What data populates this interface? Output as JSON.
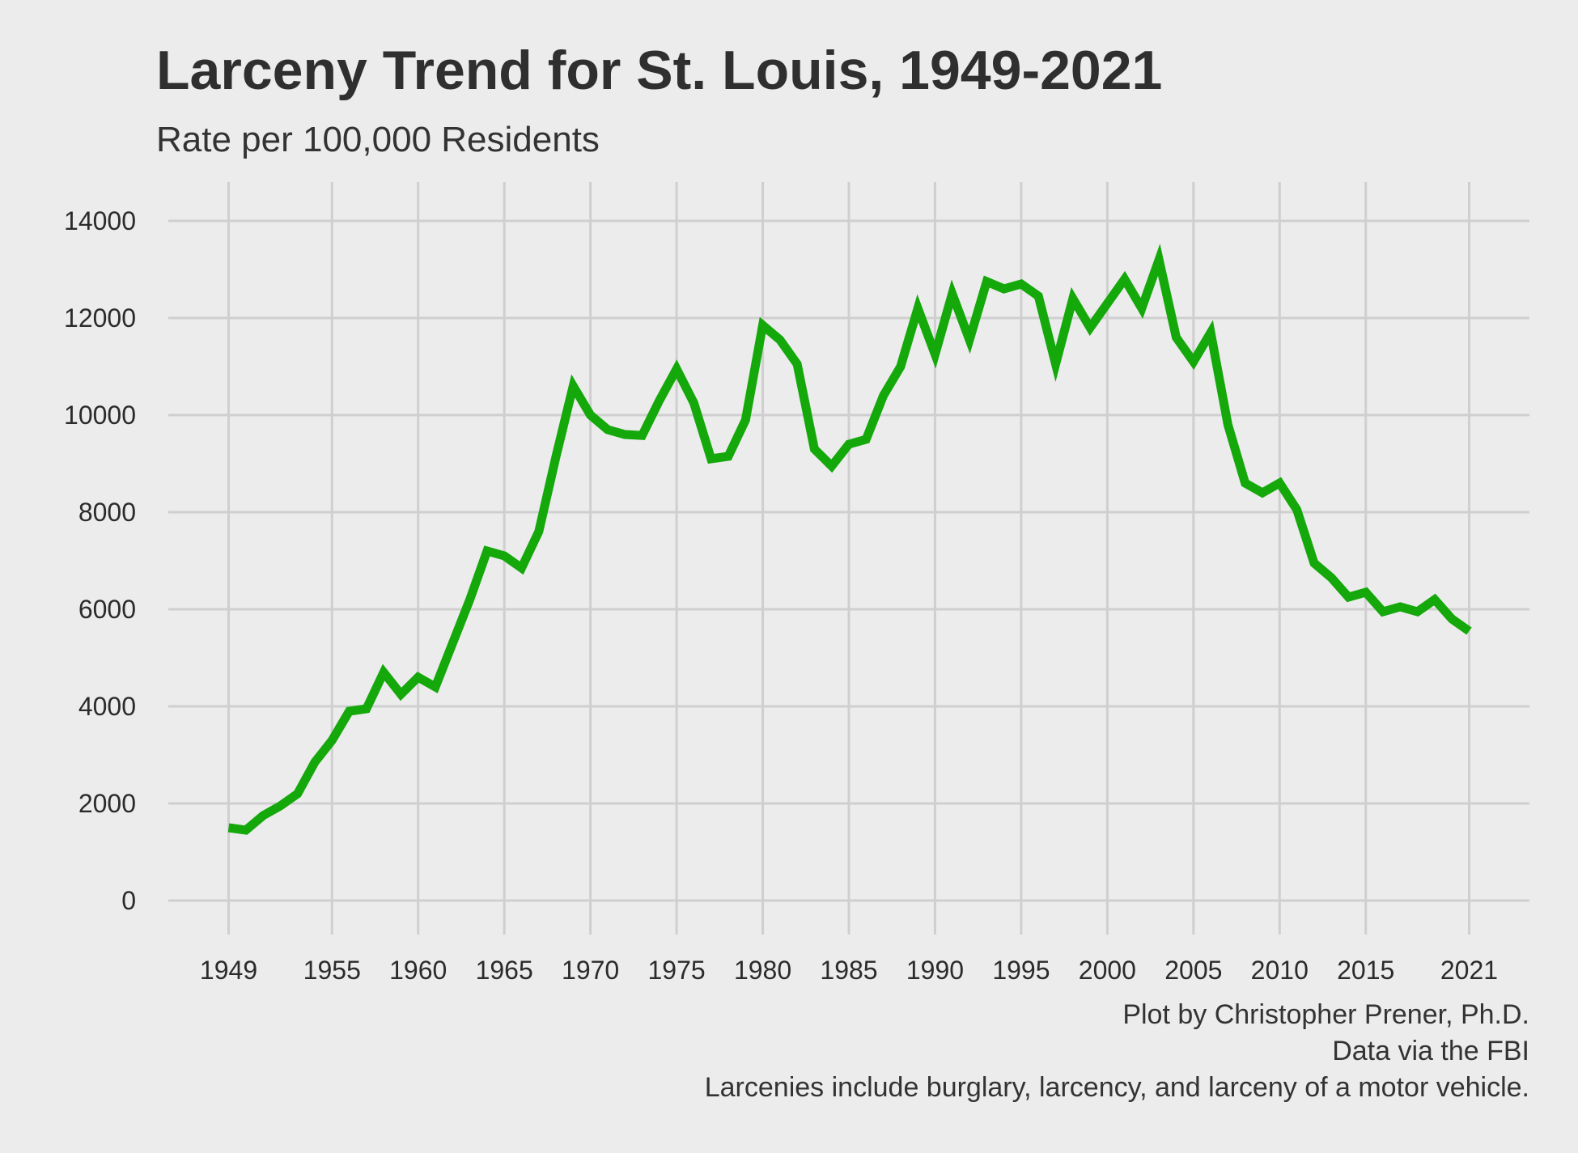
{
  "title": "Larceny Trend for St. Louis, 1949-2021",
  "subtitle": "Rate per 100,000 Residents",
  "caption": {
    "line1": "Plot by Christopher Prener, Ph.D.",
    "line2": "Data via the FBI",
    "line3": "Larcenies include burglary, larcency, and larceny of a motor vehicle."
  },
  "colors": {
    "background": "#ececec",
    "grid": "#cfcfcf",
    "line": "#14a80a",
    "text": "#2b2b2b"
  },
  "chart_data": {
    "type": "line",
    "title": "Larceny Trend for St. Louis, 1949-2021",
    "subtitle": "Rate per 100,000 Residents",
    "xlabel": "",
    "ylabel": "",
    "xlim": [
      1945.5,
      2024.5
    ],
    "ylim": [
      -700,
      14800
    ],
    "x_ticks": [
      1949,
      1955,
      1960,
      1965,
      1970,
      1975,
      1980,
      1985,
      1990,
      1995,
      2000,
      2005,
      2010,
      2015,
      2021
    ],
    "y_ticks": [
      0,
      2000,
      4000,
      6000,
      8000,
      10000,
      12000,
      14000
    ],
    "grid": true,
    "legend": "none",
    "series": [
      {
        "x": [
          1949,
          1950,
          1951,
          1952,
          1953,
          1954,
          1955,
          1956,
          1957,
          1958,
          1959,
          1960,
          1961,
          1962,
          1963,
          1964,
          1965,
          1966,
          1967,
          1968,
          1969,
          1970,
          1971,
          1972,
          1973,
          1974,
          1975,
          1976,
          1977,
          1978,
          1979,
          1980,
          1981,
          1982,
          1983,
          1984,
          1985,
          1986,
          1987,
          1988,
          1989,
          1990,
          1991,
          1992,
          1993,
          1994,
          1995,
          1996,
          1997,
          1998,
          1999,
          2000,
          2001,
          2002,
          2003,
          2004,
          2005,
          2006,
          2007,
          2008,
          2009,
          2010,
          2011,
          2012,
          2013,
          2014,
          2015,
          2016,
          2017,
          2018,
          2019,
          2020,
          2021
        ],
        "y": [
          1500,
          1450,
          1750,
          1950,
          2200,
          2850,
          3300,
          3900,
          3950,
          4700,
          4250,
          4600,
          4400,
          5300,
          6200,
          7200,
          7100,
          6850,
          7600,
          9150,
          10600,
          10000,
          9700,
          9600,
          9580,
          10300,
          10950,
          10250,
          9100,
          9150,
          9900,
          11850,
          11550,
          11050,
          9300,
          8950,
          9400,
          9500,
          10400,
          11000,
          12200,
          11250,
          12500,
          11550,
          12750,
          12600,
          12700,
          12450,
          11050,
          12400,
          11800,
          12300,
          12800,
          12200,
          13200,
          11600,
          11100,
          11700,
          9800,
          8600,
          8400,
          8600,
          8050,
          6950,
          6650,
          6250,
          6350,
          5950,
          6050,
          5950,
          6200,
          5800,
          5550
        ]
      }
    ]
  }
}
